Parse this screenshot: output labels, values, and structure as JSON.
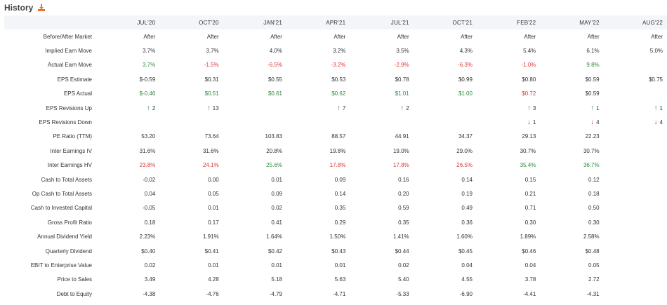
{
  "header": {
    "title": "History",
    "icon": "export-icon"
  },
  "columns": [
    "JUL'20",
    "OCT'20",
    "JAN'21",
    "APR'21",
    "JUL'21",
    "OCT'21",
    "FEB'22",
    "MAY'22",
    "AUG'22"
  ],
  "colors": {
    "positive": "#2e8b3d",
    "negative": "#d93a3a"
  },
  "rows": [
    {
      "label": "Before/After Market",
      "cells": [
        {
          "v": "After"
        },
        {
          "v": "After"
        },
        {
          "v": "After"
        },
        {
          "v": "After"
        },
        {
          "v": "After"
        },
        {
          "v": "After"
        },
        {
          "v": "After"
        },
        {
          "v": "After"
        },
        {
          "v": "After"
        }
      ]
    },
    {
      "label": "Implied Earn Move",
      "cells": [
        {
          "v": "3.7%"
        },
        {
          "v": "3.7%"
        },
        {
          "v": "4.0%"
        },
        {
          "v": "3.2%"
        },
        {
          "v": "3.5%"
        },
        {
          "v": "4.3%"
        },
        {
          "v": "5.4%"
        },
        {
          "v": "6.1%"
        },
        {
          "v": "5.0%"
        }
      ]
    },
    {
      "label": "Actual Earn Move",
      "cells": [
        {
          "v": "3.7%",
          "c": "pos"
        },
        {
          "v": "-1.5%",
          "c": "neg"
        },
        {
          "v": "-6.5%",
          "c": "neg"
        },
        {
          "v": "-3.2%",
          "c": "neg"
        },
        {
          "v": "-2.9%",
          "c": "neg"
        },
        {
          "v": "-6.3%",
          "c": "neg"
        },
        {
          "v": "-1.0%",
          "c": "neg"
        },
        {
          "v": "9.8%",
          "c": "pos"
        },
        {
          "v": ""
        }
      ]
    },
    {
      "label": "EPS Estimate",
      "cells": [
        {
          "v": "$-0.59"
        },
        {
          "v": "$0.31"
        },
        {
          "v": "$0.55"
        },
        {
          "v": "$0.53"
        },
        {
          "v": "$0.78"
        },
        {
          "v": "$0.99"
        },
        {
          "v": "$0.80"
        },
        {
          "v": "$0.59"
        },
        {
          "v": "$0.75"
        }
      ]
    },
    {
      "label": "EPS Actual",
      "cells": [
        {
          "v": "$-0.46",
          "c": "pos"
        },
        {
          "v": "$0.51",
          "c": "pos"
        },
        {
          "v": "$0.61",
          "c": "pos"
        },
        {
          "v": "$0.62",
          "c": "pos"
        },
        {
          "v": "$1.01",
          "c": "pos"
        },
        {
          "v": "$1.00",
          "c": "pos"
        },
        {
          "v": "$0.72",
          "c": "neg"
        },
        {
          "v": "$0.59"
        },
        {
          "v": ""
        }
      ]
    },
    {
      "label": "EPS Revisions Up",
      "cells": [
        {
          "v": "2",
          "a": "up"
        },
        {
          "v": "13",
          "a": "up"
        },
        {
          "v": ""
        },
        {
          "v": "7",
          "a": "up"
        },
        {
          "v": "2",
          "a": "up"
        },
        {
          "v": ""
        },
        {
          "v": "3",
          "a": "up"
        },
        {
          "v": "1",
          "a": "up"
        },
        {
          "v": "1",
          "a": "up"
        }
      ]
    },
    {
      "label": "EPS Revisions Down",
      "cells": [
        {
          "v": ""
        },
        {
          "v": ""
        },
        {
          "v": ""
        },
        {
          "v": ""
        },
        {
          "v": ""
        },
        {
          "v": ""
        },
        {
          "v": "1",
          "a": "down"
        },
        {
          "v": "4",
          "a": "down"
        },
        {
          "v": "4",
          "a": "down"
        }
      ]
    },
    {
      "label": "PE Ratio (TTM)",
      "cells": [
        {
          "v": "53.20"
        },
        {
          "v": "73.64"
        },
        {
          "v": "103.83"
        },
        {
          "v": "88.57"
        },
        {
          "v": "44.91"
        },
        {
          "v": "34.37"
        },
        {
          "v": "29.13"
        },
        {
          "v": "22.23"
        },
        {
          "v": ""
        }
      ]
    },
    {
      "label": "Inter Earnings IV",
      "cells": [
        {
          "v": "31.6%"
        },
        {
          "v": "31.6%"
        },
        {
          "v": "20.8%"
        },
        {
          "v": "19.8%"
        },
        {
          "v": "19.0%"
        },
        {
          "v": "29.0%"
        },
        {
          "v": "30.7%"
        },
        {
          "v": "30.7%"
        },
        {
          "v": ""
        }
      ]
    },
    {
      "label": "Inter Earnings HV",
      "cells": [
        {
          "v": "23.8%",
          "c": "neg"
        },
        {
          "v": "24.1%",
          "c": "neg"
        },
        {
          "v": "25.6%",
          "c": "pos"
        },
        {
          "v": "17.8%",
          "c": "neg"
        },
        {
          "v": "17.8%",
          "c": "neg"
        },
        {
          "v": "26.5%",
          "c": "neg"
        },
        {
          "v": "35.4%",
          "c": "pos"
        },
        {
          "v": "36.7%",
          "c": "pos"
        },
        {
          "v": ""
        }
      ]
    },
    {
      "label": "Cash to Total Assets",
      "cells": [
        {
          "v": "-0.02"
        },
        {
          "v": "0.00"
        },
        {
          "v": "0.01"
        },
        {
          "v": "0.09"
        },
        {
          "v": "0.16"
        },
        {
          "v": "0.14"
        },
        {
          "v": "0.15"
        },
        {
          "v": "0.12"
        },
        {
          "v": ""
        }
      ]
    },
    {
      "label": "Op Cash to Total Assets",
      "cells": [
        {
          "v": "0.04"
        },
        {
          "v": "0.05"
        },
        {
          "v": "0.09"
        },
        {
          "v": "0.14"
        },
        {
          "v": "0.20"
        },
        {
          "v": "0.19"
        },
        {
          "v": "0.21"
        },
        {
          "v": "0.18"
        },
        {
          "v": ""
        }
      ]
    },
    {
      "label": "Cash to Invested Capital",
      "cells": [
        {
          "v": "-0.05"
        },
        {
          "v": "0.01"
        },
        {
          "v": "0.02"
        },
        {
          "v": "0.35"
        },
        {
          "v": "0.59"
        },
        {
          "v": "0.49"
        },
        {
          "v": "0.71"
        },
        {
          "v": "0.50"
        },
        {
          "v": ""
        }
      ]
    },
    {
      "label": "Gross Profit Ratio",
      "cells": [
        {
          "v": "0.18"
        },
        {
          "v": "0.17"
        },
        {
          "v": "0.41"
        },
        {
          "v": "0.29"
        },
        {
          "v": "0.35"
        },
        {
          "v": "0.36"
        },
        {
          "v": "0.30"
        },
        {
          "v": "0.30"
        },
        {
          "v": ""
        }
      ]
    },
    {
      "label": "Annual Dividend Yield",
      "cells": [
        {
          "v": "2.23%"
        },
        {
          "v": "1.91%"
        },
        {
          "v": "1.64%"
        },
        {
          "v": "1.50%"
        },
        {
          "v": "1.41%"
        },
        {
          "v": "1.60%"
        },
        {
          "v": "1.89%"
        },
        {
          "v": "2.58%"
        },
        {
          "v": ""
        }
      ]
    },
    {
      "label": "Quarterly Dividend",
      "cells": [
        {
          "v": "$0.40"
        },
        {
          "v": "$0.41"
        },
        {
          "v": "$0.42"
        },
        {
          "v": "$0.43"
        },
        {
          "v": "$0.44"
        },
        {
          "v": "$0.45"
        },
        {
          "v": "$0.46"
        },
        {
          "v": "$0.48"
        },
        {
          "v": ""
        }
      ]
    },
    {
      "label": "EBIT to Enterprise Value",
      "cells": [
        {
          "v": "0.02"
        },
        {
          "v": "0.01"
        },
        {
          "v": "0.01"
        },
        {
          "v": "0.01"
        },
        {
          "v": "0.02"
        },
        {
          "v": "0.04"
        },
        {
          "v": "0.04"
        },
        {
          "v": "0.05"
        },
        {
          "v": ""
        }
      ]
    },
    {
      "label": "Price to Sales",
      "cells": [
        {
          "v": "3.49"
        },
        {
          "v": "4.28"
        },
        {
          "v": "5.18"
        },
        {
          "v": "5.63"
        },
        {
          "v": "5.40"
        },
        {
          "v": "4.55"
        },
        {
          "v": "3.78"
        },
        {
          "v": "2.72"
        },
        {
          "v": ""
        }
      ]
    },
    {
      "label": "Debt to Equity",
      "cells": [
        {
          "v": "-4.38"
        },
        {
          "v": "-4.76"
        },
        {
          "v": "-4.79"
        },
        {
          "v": "-4.71"
        },
        {
          "v": "-5.33"
        },
        {
          "v": "-6.90"
        },
        {
          "v": "-4.41"
        },
        {
          "v": "-4.31"
        },
        {
          "v": ""
        }
      ]
    }
  ]
}
